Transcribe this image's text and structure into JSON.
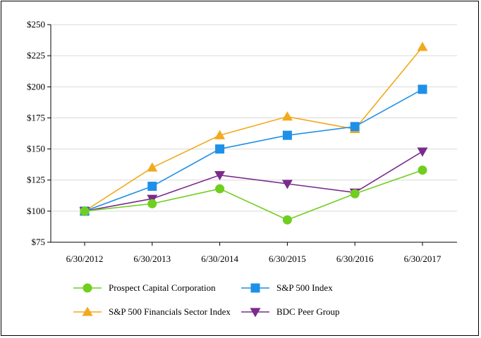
{
  "chart_data": {
    "type": "line",
    "title": "",
    "xlabel": "",
    "ylabel": "",
    "categories": [
      "6/30/2012",
      "6/30/2013",
      "6/30/2014",
      "6/30/2015",
      "6/30/2016",
      "6/30/2017"
    ],
    "ylim": [
      75,
      250
    ],
    "yticks": [
      75,
      100,
      125,
      150,
      175,
      200,
      225,
      250
    ],
    "ytick_labels": [
      "$75",
      "$100",
      "$125",
      "$150",
      "$175",
      "$200",
      "$225",
      "$250"
    ],
    "grid": true,
    "legend_position": "bottom",
    "series": [
      {
        "name": "Prospect Capital Corporation",
        "values": [
          100,
          106,
          118,
          93,
          114,
          133
        ],
        "color": "#6fce1e",
        "marker": "circle"
      },
      {
        "name": "S&P 500 Index",
        "values": [
          100,
          120,
          150,
          161,
          168,
          198
        ],
        "color": "#1e90e8",
        "marker": "square"
      },
      {
        "name": "S&P 500 Financials Sector Index",
        "values": [
          100,
          135,
          161,
          176,
          166,
          232
        ],
        "color": "#f2a91c",
        "marker": "triangle-up"
      },
      {
        "name": "BDC Peer Group",
        "values": [
          100,
          110,
          129,
          122,
          115,
          148
        ],
        "color": "#7b2b8c",
        "marker": "triangle-down"
      }
    ]
  }
}
